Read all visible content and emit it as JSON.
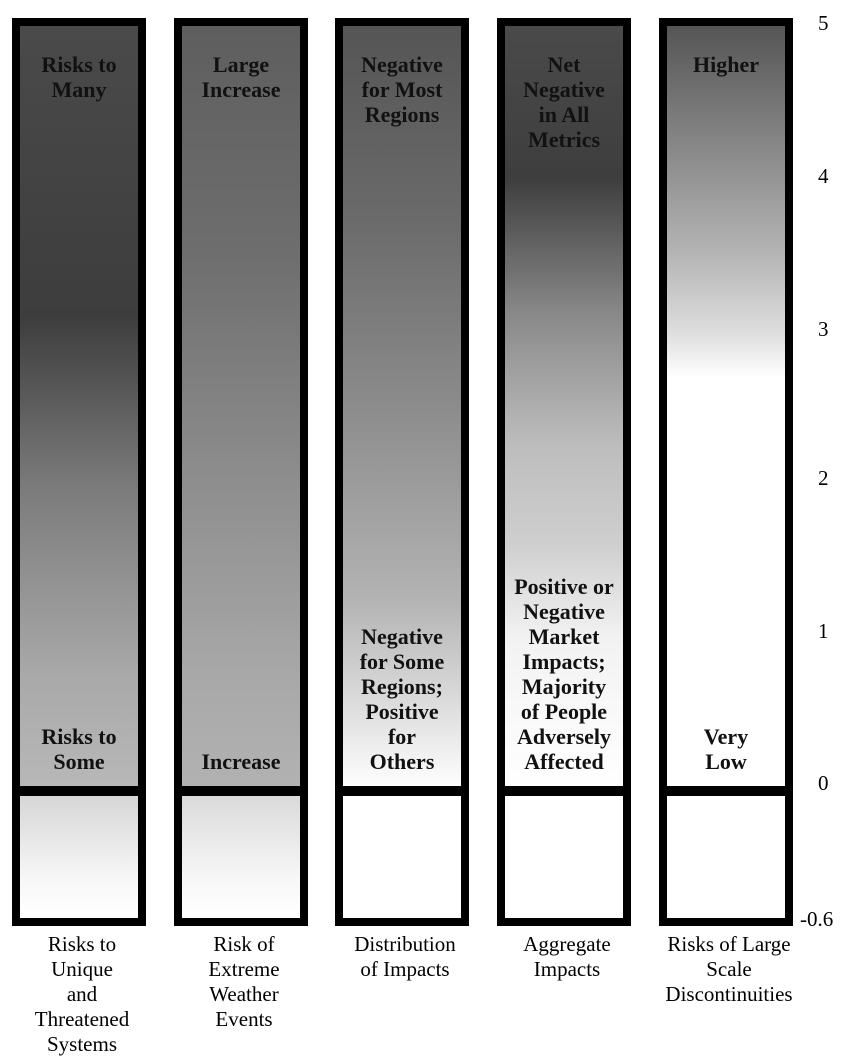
{
  "axis": {
    "ticks": [
      {
        "value": "5"
      },
      {
        "value": "4"
      },
      {
        "value": "3"
      },
      {
        "value": "2"
      },
      {
        "value": "1"
      },
      {
        "value": "0"
      },
      {
        "value": "-0.6"
      }
    ]
  },
  "columns": [
    {
      "top_label": "Risks to\nMany",
      "bottom_label": "Risks to\nSome",
      "caption": "Risks to\nUnique\nand\nThreatened\nSystems"
    },
    {
      "top_label": "Large\nIncrease",
      "bottom_label": "Increase",
      "caption": "Risk of\nExtreme\nWeather\nEvents"
    },
    {
      "top_label": "Negative\nfor Most\nRegions",
      "bottom_label": "Negative\nfor Some\nRegions;\nPositive\nfor\nOthers",
      "caption": "Distribution\nof Impacts"
    },
    {
      "top_label": "Net\nNegative\nin All\nMetrics",
      "bottom_label": "Positive or\nNegative\nMarket\nImpacts;\nMajority\nof People\nAdversely\nAffected",
      "caption": "Aggregate\nImpacts"
    },
    {
      "top_label": "Higher",
      "bottom_label": "Very\nLow",
      "caption": "Risks of Large\nScale\nDiscontinuities"
    }
  ]
}
